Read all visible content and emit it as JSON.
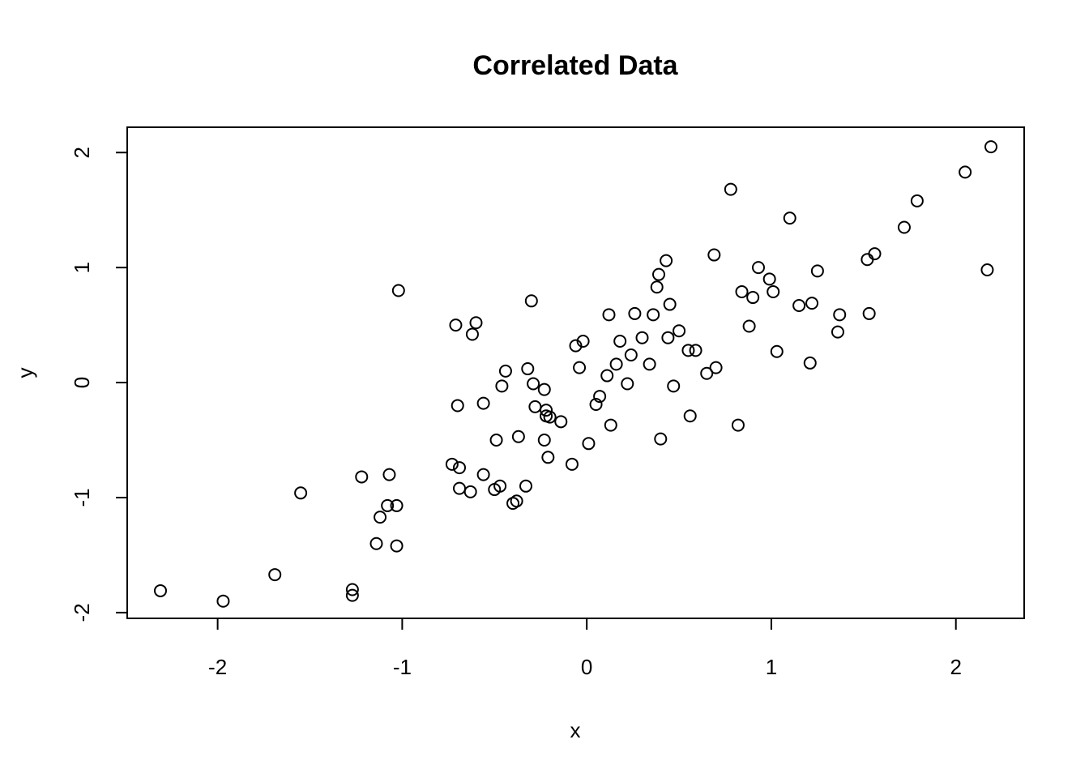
{
  "chart_data": {
    "type": "scatter",
    "title": "Correlated Data",
    "xlabel": "x",
    "ylabel": "y",
    "xlim": [
      -2.49,
      2.37
    ],
    "ylim": [
      -2.05,
      2.22
    ],
    "xticks": [
      -2,
      -1,
      0,
      1,
      2
    ],
    "xtick_labels": [
      "-2",
      "-1",
      "0",
      "1",
      "2"
    ],
    "yticks": [
      -2,
      -1,
      0,
      1,
      2
    ],
    "ytick_labels": [
      "-2",
      "-1",
      "0",
      "1",
      "2"
    ],
    "grid": false,
    "marker": "open-circle",
    "point_color": "#000000",
    "points": [
      [
        -2.31,
        -1.81
      ],
      [
        -1.97,
        -1.9
      ],
      [
        -1.69,
        -1.67
      ],
      [
        -1.55,
        -0.96
      ],
      [
        -1.27,
        -1.8
      ],
      [
        -1.27,
        -1.85
      ],
      [
        -1.22,
        -0.82
      ],
      [
        -1.14,
        -1.4
      ],
      [
        -1.12,
        -1.17
      ],
      [
        -1.08,
        -1.07
      ],
      [
        -1.07,
        -0.8
      ],
      [
        -1.03,
        -1.07
      ],
      [
        -1.03,
        -1.42
      ],
      [
        -1.02,
        0.8
      ],
      [
        -0.73,
        -0.71
      ],
      [
        -0.71,
        0.5
      ],
      [
        -0.7,
        -0.2
      ],
      [
        -0.69,
        -0.74
      ],
      [
        -0.69,
        -0.92
      ],
      [
        -0.63,
        -0.95
      ],
      [
        -0.62,
        0.42
      ],
      [
        -0.6,
        0.52
      ],
      [
        -0.56,
        -0.8
      ],
      [
        -0.56,
        -0.18
      ],
      [
        -0.5,
        -0.93
      ],
      [
        -0.49,
        -0.5
      ],
      [
        -0.47,
        -0.9
      ],
      [
        -0.46,
        -0.03
      ],
      [
        -0.44,
        0.1
      ],
      [
        -0.4,
        -1.05
      ],
      [
        -0.38,
        -1.03
      ],
      [
        -0.37,
        -0.47
      ],
      [
        -0.33,
        -0.9
      ],
      [
        -0.32,
        0.12
      ],
      [
        -0.3,
        0.71
      ],
      [
        -0.29,
        -0.01
      ],
      [
        -0.28,
        -0.21
      ],
      [
        -0.23,
        -0.5
      ],
      [
        -0.23,
        -0.06
      ],
      [
        -0.22,
        -0.24
      ],
      [
        -0.22,
        -0.29
      ],
      [
        -0.21,
        -0.65
      ],
      [
        -0.2,
        -0.3
      ],
      [
        -0.14,
        -0.34
      ],
      [
        -0.08,
        -0.71
      ],
      [
        -0.06,
        0.32
      ],
      [
        -0.04,
        0.13
      ],
      [
        -0.02,
        0.36
      ],
      [
        0.01,
        -0.53
      ],
      [
        0.05,
        -0.19
      ],
      [
        0.07,
        -0.12
      ],
      [
        0.11,
        0.06
      ],
      [
        0.12,
        0.59
      ],
      [
        0.13,
        -0.37
      ],
      [
        0.16,
        0.16
      ],
      [
        0.18,
        0.36
      ],
      [
        0.22,
        -0.01
      ],
      [
        0.24,
        0.24
      ],
      [
        0.26,
        0.6
      ],
      [
        0.3,
        0.39
      ],
      [
        0.34,
        0.16
      ],
      [
        0.36,
        0.59
      ],
      [
        0.38,
        0.83
      ],
      [
        0.39,
        0.94
      ],
      [
        0.4,
        -0.49
      ],
      [
        0.43,
        1.06
      ],
      [
        0.44,
        0.39
      ],
      [
        0.45,
        0.68
      ],
      [
        0.47,
        -0.03
      ],
      [
        0.5,
        0.45
      ],
      [
        0.55,
        0.28
      ],
      [
        0.56,
        -0.29
      ],
      [
        0.59,
        0.28
      ],
      [
        0.65,
        0.08
      ],
      [
        0.69,
        1.11
      ],
      [
        0.7,
        0.13
      ],
      [
        0.78,
        1.68
      ],
      [
        0.82,
        -0.37
      ],
      [
        0.84,
        0.79
      ],
      [
        0.88,
        0.49
      ],
      [
        0.9,
        0.74
      ],
      [
        0.93,
        1.0
      ],
      [
        0.99,
        0.9
      ],
      [
        1.01,
        0.79
      ],
      [
        1.03,
        0.27
      ],
      [
        1.1,
        1.43
      ],
      [
        1.15,
        0.67
      ],
      [
        1.21,
        0.17
      ],
      [
        1.22,
        0.69
      ],
      [
        1.25,
        0.97
      ],
      [
        1.36,
        0.44
      ],
      [
        1.37,
        0.59
      ],
      [
        1.52,
        1.07
      ],
      [
        1.53,
        0.6
      ],
      [
        1.56,
        1.12
      ],
      [
        1.72,
        1.35
      ],
      [
        1.79,
        1.58
      ],
      [
        2.05,
        1.83
      ],
      [
        2.17,
        0.98
      ],
      [
        2.19,
        2.05
      ]
    ]
  }
}
